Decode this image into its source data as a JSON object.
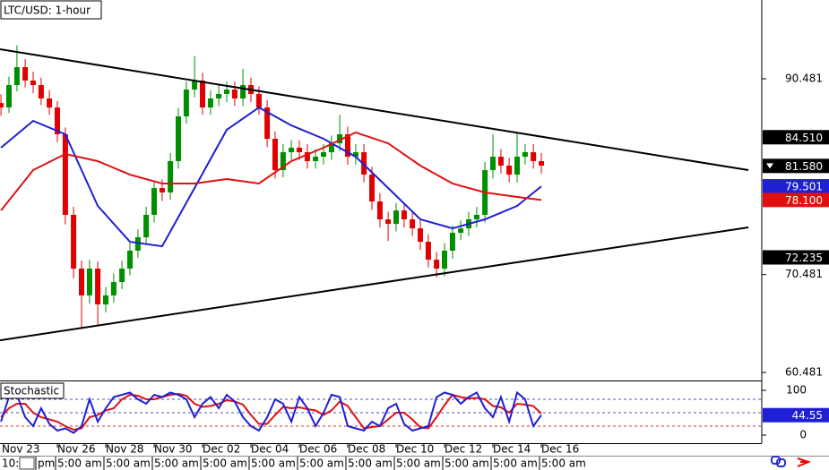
{
  "chart_data": [
    {
      "type": "candlestick",
      "title": "LTC/USD: 1-hour",
      "x": [
        0.67,
        1.0,
        1.33,
        1.67,
        2.0,
        2.33,
        2.67,
        3.0,
        3.33,
        3.67,
        4.0,
        4.33,
        4.67,
        5.0,
        5.33,
        5.67,
        6.0,
        6.33,
        6.67,
        7.0,
        7.33,
        7.67,
        8.0,
        8.33,
        8.67,
        9.0,
        9.33,
        9.67,
        10.0,
        10.33,
        10.67,
        11.0,
        11.33,
        11.67,
        12.0,
        12.33,
        12.67,
        13.0,
        13.33,
        13.67,
        14.0,
        14.33,
        14.67,
        15.0,
        15.33,
        15.67,
        16.0,
        16.33,
        16.67,
        17.0,
        17.33,
        17.67,
        18.0,
        18.33,
        18.67,
        19.0,
        19.33,
        19.67,
        20.0,
        20.33,
        20.67,
        21.0,
        21.33,
        21.67,
        22.0,
        22.33,
        22.67,
        23.0
      ],
      "open": [
        88.0,
        87.55,
        89.84,
        91.67,
        90.3,
        89.84,
        88.47,
        87.55,
        84.81,
        76.58,
        71.09,
        68.35,
        71.09,
        67.43,
        68.35,
        69.72,
        71.09,
        72.92,
        74.29,
        76.58,
        79.32,
        78.87,
        82.07,
        86.64,
        89.38,
        90.3,
        87.55,
        88.47,
        88.93,
        89.38,
        88.47,
        89.84,
        88.93,
        87.55,
        84.35,
        81.15,
        82.98,
        83.44,
        82.98,
        82.07,
        82.52,
        82.98,
        83.89,
        84.81,
        82.52,
        82.98,
        80.69,
        77.95,
        76.12,
        75.66,
        77.03,
        76.12,
        75.2,
        73.83,
        72.0,
        71.09,
        72.92,
        74.75,
        75.2,
        76.12,
        76.58,
        81.15,
        82.52,
        81.61,
        80.69,
        82.52,
        82.98,
        82.07
      ],
      "high": [
        88.9,
        90.7,
        93.9,
        92.5,
        91.2,
        90.6,
        89.3,
        88.2,
        85.5,
        77.4,
        71.9,
        72.0,
        71.8,
        69.2,
        70.6,
        71.9,
        73.7,
        75.1,
        77.4,
        80.1,
        80.2,
        82.9,
        87.5,
        90.2,
        92.8,
        91.1,
        89.3,
        89.8,
        90.2,
        90.2,
        91.5,
        90.6,
        89.7,
        88.3,
        85.1,
        83.8,
        84.2,
        84.2,
        83.8,
        83.3,
        83.8,
        84.7,
        86.8,
        85.6,
        83.8,
        83.8,
        81.5,
        78.8,
        76.9,
        77.8,
        77.8,
        76.9,
        76.0,
        74.6,
        72.8,
        73.7,
        75.5,
        76.0,
        76.9,
        77.4,
        82.0,
        84.8,
        83.3,
        82.4,
        84.9,
        83.8,
        83.8,
        82.9
      ],
      "low": [
        86.7,
        87.0,
        89.2,
        89.6,
        89.0,
        87.8,
        86.8,
        84.0,
        75.6,
        70.1,
        65.0,
        67.5,
        65.3,
        66.6,
        67.6,
        69.0,
        70.4,
        72.2,
        73.6,
        75.8,
        78.0,
        78.1,
        81.3,
        85.9,
        88.6,
        86.8,
        86.8,
        87.7,
        88.1,
        87.7,
        87.7,
        88.1,
        86.8,
        83.5,
        80.3,
        80.4,
        82.2,
        82.2,
        81.3,
        81.3,
        81.7,
        82.2,
        83.1,
        81.7,
        81.7,
        79.9,
        77.1,
        75.3,
        73.9,
        74.9,
        75.3,
        74.4,
        73.0,
        71.2,
        70.2,
        70.3,
        72.1,
        74.0,
        74.4,
        75.3,
        75.8,
        80.3,
        80.8,
        79.9,
        79.9,
        81.7,
        81.3,
        80.8
      ],
      "close": [
        87.55,
        89.84,
        91.67,
        90.3,
        89.84,
        88.47,
        87.55,
        84.81,
        76.58,
        71.09,
        68.35,
        71.09,
        67.43,
        68.35,
        69.72,
        71.09,
        72.92,
        74.29,
        76.58,
        79.32,
        78.87,
        82.07,
        86.64,
        89.38,
        90.3,
        87.55,
        88.47,
        88.93,
        89.38,
        88.47,
        89.84,
        88.93,
        87.55,
        84.35,
        81.15,
        82.98,
        83.44,
        82.98,
        82.07,
        82.52,
        82.98,
        83.89,
        84.81,
        82.52,
        82.98,
        80.69,
        77.95,
        76.12,
        75.66,
        77.03,
        76.12,
        75.2,
        73.83,
        72.0,
        71.09,
        72.92,
        74.75,
        75.2,
        76.12,
        76.58,
        81.15,
        82.52,
        81.61,
        80.69,
        82.52,
        82.98,
        82.07,
        81.61
      ],
      "up_color": "#008f00",
      "down_color": "#e00000",
      "series": [
        {
          "color": "#1f1fd6",
          "x": [
            0.67,
            2.0,
            3.33,
            4.67,
            6.0,
            7.33,
            8.67,
            10.0,
            11.33,
            12.67,
            14.0,
            15.33,
            16.67,
            18.0,
            19.33,
            20.67,
            22.0,
            23.0
          ],
          "values": [
            83.44,
            86.18,
            84.81,
            77.49,
            73.83,
            73.37,
            79.32,
            85.27,
            87.55,
            85.72,
            84.35,
            82.52,
            79.32,
            76.12,
            75.2,
            76.12,
            77.49,
            79.5
          ]
        },
        {
          "color": "#e01010",
          "x": [
            0.67,
            2.0,
            3.33,
            4.67,
            6.0,
            7.33,
            8.67,
            10.0,
            11.33,
            12.67,
            14.0,
            15.33,
            16.67,
            18.0,
            19.33,
            20.67,
            22.0,
            23.0
          ],
          "values": [
            77.03,
            81.15,
            82.8,
            82.07,
            80.69,
            79.78,
            79.78,
            80.24,
            79.78,
            82.07,
            83.44,
            85.0,
            83.89,
            81.61,
            79.78,
            78.87,
            78.41,
            78.1
          ]
        }
      ],
      "lines": [
        {
          "color": "#000000",
          "x": [
            0.63,
            31.56
          ],
          "values": [
            93.5,
            81.15
          ]
        },
        {
          "color": "#000000",
          "x": [
            0.63,
            31.56
          ],
          "values": [
            63.77,
            75.3
          ]
        }
      ],
      "price_labels": [
        {
          "value": 84.51,
          "label": "84.510",
          "color": "#000000"
        },
        {
          "value": 81.58,
          "label": "81.580",
          "color": "#000000"
        },
        {
          "value": 79.501,
          "label": "79.501",
          "color": "#1f1fd6"
        },
        {
          "value": 78.1,
          "label": "78.100",
          "color": "#e01010"
        },
        {
          "value": 72.235,
          "label": "72.235",
          "color": "#000000"
        }
      ],
      "xlim": [
        0.63,
        32.11
      ],
      "xticks": [
        {
          "value": 0,
          "label": "Nov 23"
        },
        {
          "value": 3,
          "label": "Nov 26"
        },
        {
          "value": 5,
          "label": "Nov 28"
        },
        {
          "value": 7,
          "label": "Nov 30"
        },
        {
          "value": 9,
          "label": "Dec 02"
        },
        {
          "value": 11,
          "label": "Dec 04"
        },
        {
          "value": 13,
          "label": "Dec 06"
        },
        {
          "value": 15,
          "label": "Dec 08"
        },
        {
          "value": 17,
          "label": "Dec 10"
        },
        {
          "value": 19,
          "label": "Dec 12"
        },
        {
          "value": 21,
          "label": "Dec 14"
        },
        {
          "value": 23,
          "label": "Dec 16"
        }
      ],
      "ylim": [
        59.66,
        98.53
      ],
      "yticks": [
        90.481,
        70.481,
        60.481
      ]
    },
    {
      "type": "line",
      "title": "Stochastic",
      "x": [
        0.67,
        1.0,
        1.33,
        1.67,
        2.0,
        2.33,
        2.67,
        3.0,
        3.33,
        3.67,
        4.0,
        4.33,
        4.67,
        5.0,
        5.33,
        5.67,
        6.0,
        6.33,
        6.67,
        7.0,
        7.33,
        7.67,
        8.0,
        8.33,
        8.67,
        9.0,
        9.33,
        9.67,
        10.0,
        10.33,
        10.67,
        11.0,
        11.33,
        11.67,
        12.0,
        12.33,
        12.67,
        13.0,
        13.33,
        13.67,
        14.0,
        14.33,
        14.67,
        15.0,
        15.33,
        15.67,
        16.0,
        16.33,
        16.67,
        17.0,
        17.33,
        17.67,
        18.0,
        18.33,
        18.67,
        19.0,
        19.33,
        19.67,
        20.0,
        20.33,
        20.67,
        21.0,
        21.33,
        21.67,
        22.0,
        22.33,
        22.67,
        23.0
      ],
      "series": [
        {
          "color": "#e01010",
          "values": [
            40,
            60,
            70,
            70,
            50,
            40,
            35,
            30,
            20,
            12,
            15,
            40,
            45,
            55,
            60,
            80,
            90,
            88,
            80,
            80,
            85,
            90,
            92,
            88,
            70,
            63,
            65,
            70,
            78,
            75,
            68,
            45,
            25,
            25,
            45,
            63,
            60,
            62,
            58,
            55,
            45,
            55,
            75,
            65,
            40,
            15,
            18,
            20,
            35,
            50,
            50,
            35,
            17,
            15,
            40,
            67,
            90,
            85,
            82,
            83,
            80,
            65,
            62,
            50,
            70,
            68,
            65,
            48
          ]
        },
        {
          "color": "#1f1fd6",
          "values": [
            30,
            85,
            90,
            40,
            20,
            60,
            25,
            10,
            15,
            5,
            20,
            80,
            30,
            60,
            85,
            90,
            95,
            80,
            70,
            90,
            85,
            95,
            90,
            80,
            40,
            70,
            85,
            60,
            90,
            75,
            40,
            20,
            10,
            40,
            80,
            70,
            30,
            85,
            60,
            20,
            50,
            90,
            85,
            20,
            15,
            10,
            30,
            20,
            60,
            70,
            25,
            10,
            15,
            20,
            85,
            95,
            90,
            70,
            85,
            95,
            60,
            40,
            85,
            30,
            95,
            80,
            20,
            44.55
          ]
        }
      ],
      "levels": [
        80,
        50,
        20
      ],
      "price_labels": [
        {
          "value": 44.55,
          "label": "44.55",
          "color": "#1f1fd6"
        }
      ],
      "xlim": [
        0.63,
        32.11
      ],
      "ylim": [
        -18,
        116
      ],
      "yticks": [
        100,
        0
      ]
    }
  ],
  "time_labels": [
    "10:",
    "pm",
    "5:00 am",
    "5:00 am",
    "5:00 am",
    "5:00 am",
    "5:00 am",
    "5:00 am",
    "5:00 am",
    "5:00 am",
    "5:00 am",
    "5:00 am",
    "5:00 am"
  ]
}
